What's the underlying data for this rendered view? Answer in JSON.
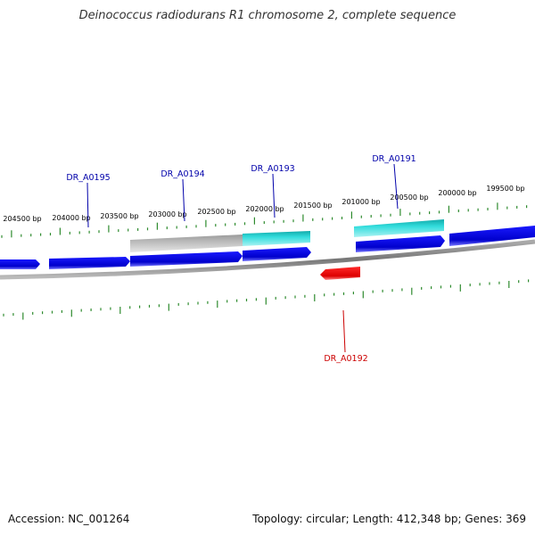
{
  "title": "Deinococcus radiodurans R1 chromosome 2, complete sequence",
  "footer": {
    "accession": "Accession: NC_001264",
    "topology": "Topology: circular; Length: 412,348 bp; Genes: 369"
  },
  "colors": {
    "tick": "#2e8b2e",
    "backbone": "#888888",
    "forward_gene": "#0000dd",
    "reverse_gene": "#ee0000",
    "highlight": "#22cccc",
    "grey_feature": "#aaaaaa",
    "forward_label": "#0000aa",
    "reverse_label": "#cc0000"
  },
  "ruler_labels": [
    "204500 bp",
    "204000 bp",
    "203500 bp",
    "203000 bp",
    "202500 bp",
    "202000 bp",
    "201500 bp",
    "201000 bp",
    "200500 bp",
    "200000 bp",
    "199500 bp"
  ],
  "gene_labels": {
    "forward": [
      "DR_A0195",
      "DR_A0194",
      "DR_A0193",
      "DR_A0191"
    ],
    "reverse": [
      "DR_A0192"
    ]
  }
}
